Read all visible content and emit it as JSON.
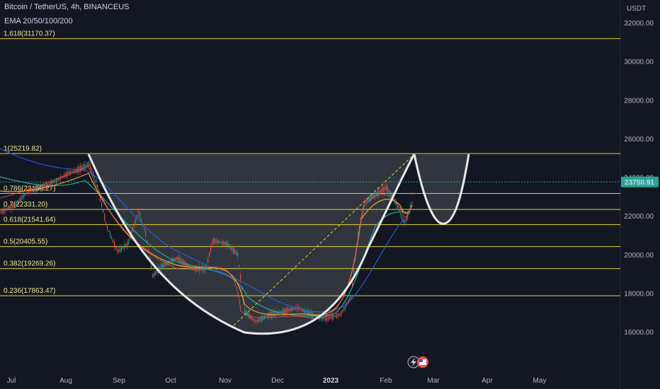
{
  "header": {
    "symbol_line": "Bitcoin / TetherUS, 4h, BINANCEUS",
    "indicator": "EMA 20/50/100/200"
  },
  "price_axis": {
    "unit": "USDT",
    "ticks": [
      "32000.00",
      "30000.00",
      "28000.00",
      "26000.00",
      "24000.00",
      "22000.00",
      "20000.00",
      "18000.00",
      "16000.00"
    ],
    "current_price": "23750.91",
    "current_price_color": "#26a69a"
  },
  "time_axis": {
    "labels": [
      "Jul",
      "Aug",
      "Sep",
      "Oct",
      "Nov",
      "Dec",
      "2023",
      "Feb",
      "Mar",
      "Apr",
      "May"
    ]
  },
  "fib_levels": [
    {
      "label": "1.618(31170.37)",
      "value": 31170.37
    },
    {
      "label": "1(25219.82)",
      "value": 25219.82
    },
    {
      "label": "0.786(23159.27)",
      "value": 23159.27
    },
    {
      "label": "0.7(22331.20)",
      "value": 22331.2
    },
    {
      "label": "0.618(21541.64)",
      "value": 21541.64
    },
    {
      "label": "0.5(20405.55)",
      "value": 20405.55
    },
    {
      "label": "0.382(19269.26)",
      "value": 19269.26
    },
    {
      "label": "0.236(17863.47)",
      "value": 17863.47
    }
  ],
  "colors": {
    "background": "#131722",
    "fib_line": "#e6d33a",
    "cup_line": "#ffffff",
    "ema_fast": "#f0a030",
    "ema_mid": "#26a69a",
    "ema_slow": "#2d5bd6",
    "up": "#26a69a",
    "down": "#ef5350"
  },
  "chart_data": {
    "type": "line",
    "title": "Bitcoin / TetherUS, 4h, BINANCEUS",
    "x": [
      "Jul",
      "Aug",
      "Sep",
      "Oct",
      "Nov",
      "Dec",
      "2023",
      "Feb"
    ],
    "series": [
      {
        "name": "EMA 20/50/100/200",
        "values": [
          20000,
          23500,
          20000,
          19300,
          20500,
          16900,
          17000,
          23000
        ]
      }
    ],
    "y_axis_label": "USDT",
    "ylim": [
      15000,
      33000
    ],
    "grid": false
  },
  "icons": [
    "flash-icon",
    "flag-us-icon"
  ]
}
